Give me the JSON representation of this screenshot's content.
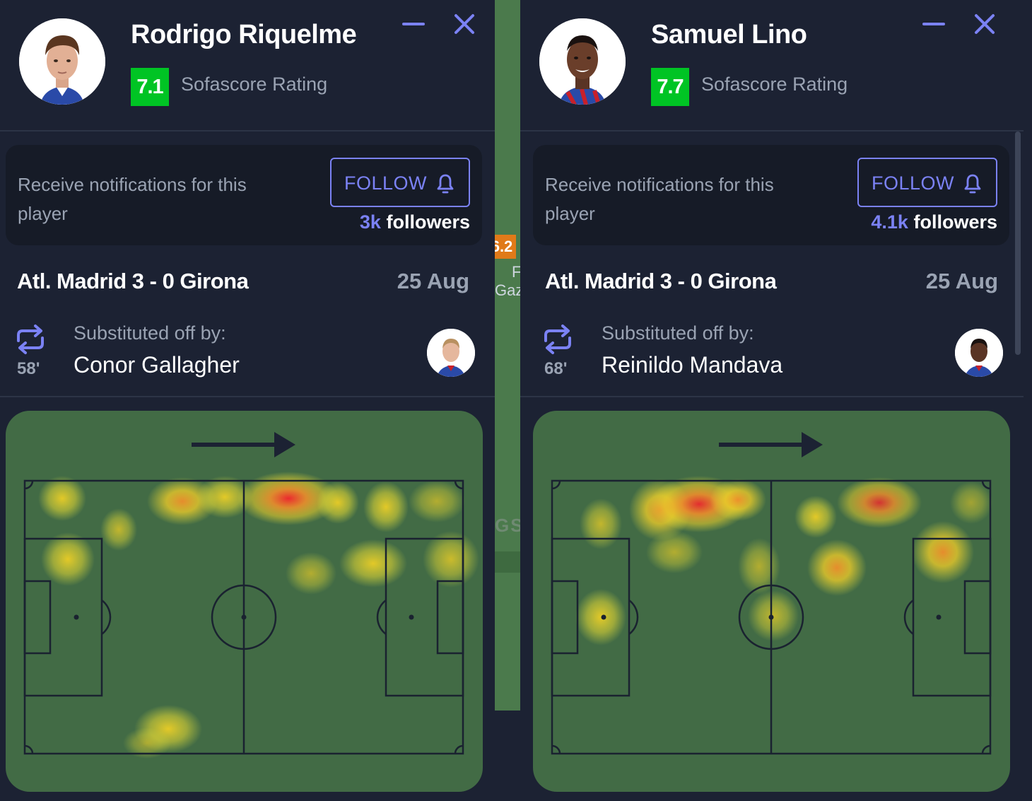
{
  "players": [
    {
      "name": "Rodrigo Riquelme",
      "rating": "7.1",
      "rating_label": "Sofascore Rating",
      "notify_text": "Receive notifications for this player",
      "follow_label": "FOLLOW",
      "followers_count": "3k",
      "followers_label": "followers",
      "match": "Atl. Madrid 3 - 0 Girona",
      "date": "25 Aug",
      "sub_label": "Substituted off by:",
      "sub_minute": "58'",
      "sub_name": "Conor Gallagher",
      "attack_direction": "right"
    },
    {
      "name": "Samuel Lino",
      "rating": "7.7",
      "rating_label": "Sofascore Rating",
      "notify_text": "Receive notifications for this player",
      "follow_label": "FOLLOW",
      "followers_count": "4.1k",
      "followers_label": "followers",
      "match": "Atl. Madrid 3 - 0 Girona",
      "date": "25 Aug",
      "sub_label": "Substituted off by:",
      "sub_minute": "68'",
      "sub_name": "Reinildo Mandava",
      "attack_direction": "right"
    }
  ],
  "background": {
    "rating": "6.2",
    "text1": "F",
    "text2": "Gaz",
    "text3": "GS"
  },
  "colors": {
    "accent": "#7b82f5",
    "rating_green": "#00c424",
    "card_bg": "#1c2233",
    "pitch": "#426b45"
  }
}
